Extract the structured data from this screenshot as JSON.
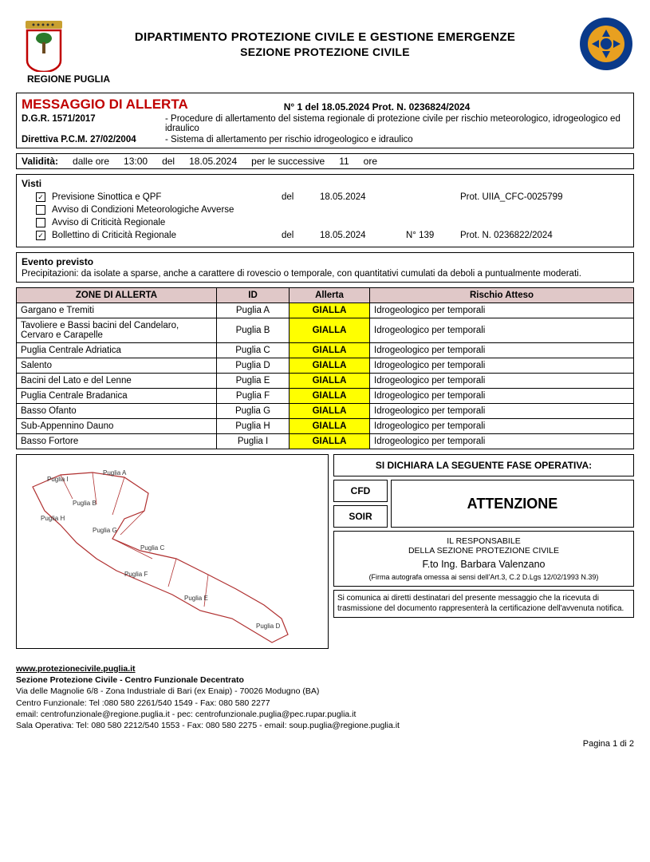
{
  "header": {
    "dept_line1": "DIPARTIMENTO PROTEZIONE CIVILE E GESTIONE EMERGENZE",
    "dept_line2": "SEZIONE PROTEZIONE CIVILE",
    "region": "REGIONE PUGLIA"
  },
  "message": {
    "title": "MESSAGGIO DI ALLERTA",
    "ref": "N° 1 del 18.05.2024  Prot. N. 0236824/2024",
    "refs": [
      {
        "left": "D.G.R. 1571/2017",
        "right": "- Procedure di allertamento del sistema regionale di protezione civile per rischio meteorologico, idrogeologico ed idraulico"
      },
      {
        "left": "Direttiva P.C.M. 27/02/2004",
        "right": "- Sistema di allertamento per rischio idrogeologico e idraulico"
      }
    ]
  },
  "validita": {
    "label": "Validità:",
    "dalle": "dalle ore",
    "ora": "13:00",
    "del": "del",
    "data": "18.05.2024",
    "succ": "per le successive",
    "hours": "11",
    "ore": "ore"
  },
  "visti": {
    "title": "Visti",
    "items": [
      {
        "checked": true,
        "label": "Previsione Sinottica e QPF",
        "del": "del",
        "date": "18.05.2024",
        "num": "",
        "prot": "Prot. UIIA_CFC-0025799"
      },
      {
        "checked": false,
        "label": "Avviso di Condizioni Meteorologiche Avverse",
        "del": "",
        "date": "",
        "num": "",
        "prot": ""
      },
      {
        "checked": false,
        "label": "Avviso di Criticità Regionale",
        "del": "",
        "date": "",
        "num": "",
        "prot": ""
      },
      {
        "checked": true,
        "label": "Bollettino di Criticità Regionale",
        "del": "del",
        "date": "18.05.2024",
        "num": "N° 139",
        "prot": "Prot. N. 0236822/2024"
      }
    ]
  },
  "evento": {
    "title": "Evento previsto",
    "text": "Precipitazioni: da isolate a sparse, anche a carattere di rovescio o temporale, con quantitativi cumulati da deboli a puntualmente moderati."
  },
  "alert_table": {
    "headers": [
      "ZONE DI ALLERTA",
      "ID",
      "Allerta",
      "Rischio Atteso"
    ],
    "header_bg": "#e0c8c8",
    "allerta_bg": "#ffff00",
    "rows": [
      {
        "zone": "Gargano e Tremiti",
        "id": "Puglia A",
        "allerta": "GIALLA",
        "risk": "Idrogeologico per temporali"
      },
      {
        "zone": "Tavoliere e Bassi bacini del Candelaro, Cervaro e Carapelle",
        "id": "Puglia B",
        "allerta": "GIALLA",
        "risk": "Idrogeologico per temporali"
      },
      {
        "zone": "Puglia Centrale Adriatica",
        "id": "Puglia C",
        "allerta": "GIALLA",
        "risk": "Idrogeologico per temporali"
      },
      {
        "zone": "Salento",
        "id": "Puglia D",
        "allerta": "GIALLA",
        "risk": "Idrogeologico per temporali"
      },
      {
        "zone": "Bacini del Lato e del Lenne",
        "id": "Puglia E",
        "allerta": "GIALLA",
        "risk": "Idrogeologico per temporali"
      },
      {
        "zone": "Puglia Centrale Bradanica",
        "id": "Puglia F",
        "allerta": "GIALLA",
        "risk": "Idrogeologico per temporali"
      },
      {
        "zone": "Basso Ofanto",
        "id": "Puglia G",
        "allerta": "GIALLA",
        "risk": "Idrogeologico per temporali"
      },
      {
        "zone": "Sub-Appennino Dauno",
        "id": "Puglia H",
        "allerta": "GIALLA",
        "risk": "Idrogeologico per temporali"
      },
      {
        "zone": "Basso Fortore",
        "id": "Puglia I",
        "allerta": "GIALLA",
        "risk": "Idrogeologico per temporali"
      }
    ]
  },
  "map": {
    "labels": [
      "Puglia I",
      "Puglia A",
      "Puglia B",
      "Puglia H",
      "Puglia G",
      "Puglia C",
      "Puglia F",
      "Puglia E",
      "Puglia D"
    ],
    "outline_color": "#b03030"
  },
  "fase": {
    "title": "SI DICHIARA LA SEGUENTE FASE OPERATIVA:",
    "rows": [
      "CFD",
      "SOIR"
    ],
    "value": "ATTENZIONE"
  },
  "responsabile": {
    "line1": "IL RESPONSABILE",
    "line2": "DELLA SEZIONE PROTEZIONE CIVILE",
    "name": "F.to Ing. Barbara Valenzano",
    "firma": "(Firma autografa omessa ai sensi dell'Art.3, C.2 D.Lgs 12/02/1993 N.39)"
  },
  "comunicazione": "Si comunica ai diretti destinatari del presente messaggio che la ricevuta di trasmissione del documento rappresenterà la certificazione dell'avvenuta notifica.",
  "footer": {
    "url": "www.protezionecivile.puglia.it",
    "section": "Sezione Protezione Civile - Centro Funzionale Decentrato",
    "addr": "Via delle Magnolie 6/8 - Zona Industriale di Bari (ex Enaip) - 70026 Modugno (BA)",
    "cf": "Centro Funzionale: Tel :080 580 2261/540 1549 - Fax: 080 580 2277",
    "email": "email: centrofunzionale@regione.puglia.it - pec: centrofunzionale.puglia@pec.rupar.puglia.it",
    "so": "Sala Operativa: Tel: 080 580 2212/540 1553 - Fax: 080 580 2275 - email: soup.puglia@regione.puglia.it"
  },
  "page_num": "Pagina 1 di 2",
  "colors": {
    "title_red": "#c00000"
  }
}
